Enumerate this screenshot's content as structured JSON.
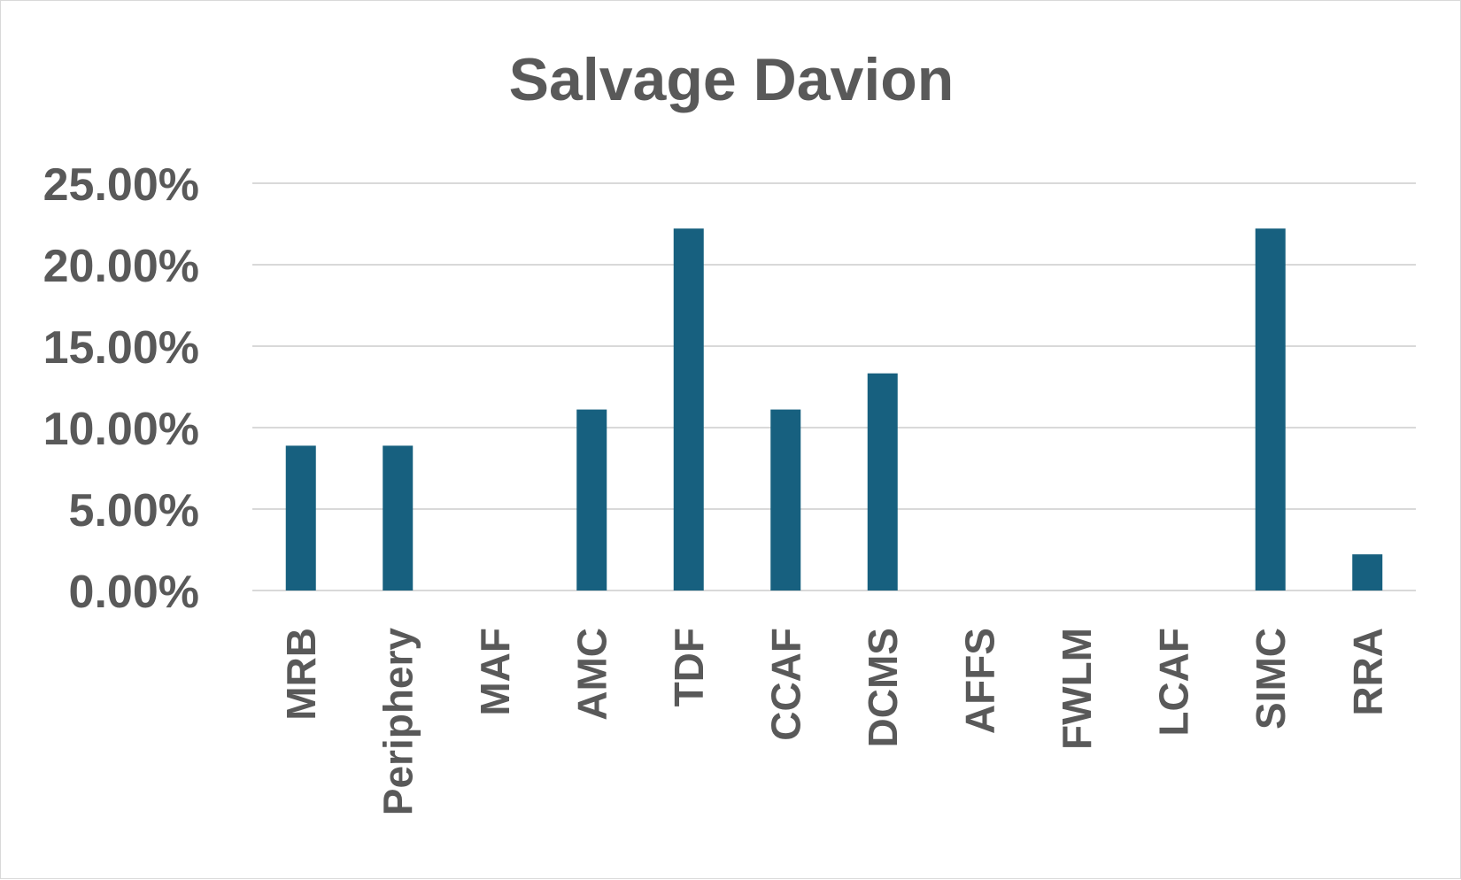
{
  "chart_data": {
    "type": "bar",
    "title": "Salvage Davion",
    "xlabel": "",
    "ylabel": "",
    "categories": [
      "MRB",
      "Periphery",
      "MAF",
      "AMC",
      "TDF",
      "CCAF",
      "DCMS",
      "AFFS",
      "FWLM",
      "LCAF",
      "SIMC",
      "RRA"
    ],
    "values": [
      0.0889,
      0.0889,
      0,
      0.1111,
      0.2222,
      0.1111,
      0.1333,
      0,
      0,
      0,
      0.2222,
      0.0222
    ],
    "ylim": [
      0,
      0.25
    ],
    "yticks": [
      "0.00%",
      "5.00%",
      "10.00%",
      "15.00%",
      "20.00%",
      "25.00%"
    ],
    "grid": true,
    "legend": "none",
    "bar_color": "#17607f"
  }
}
